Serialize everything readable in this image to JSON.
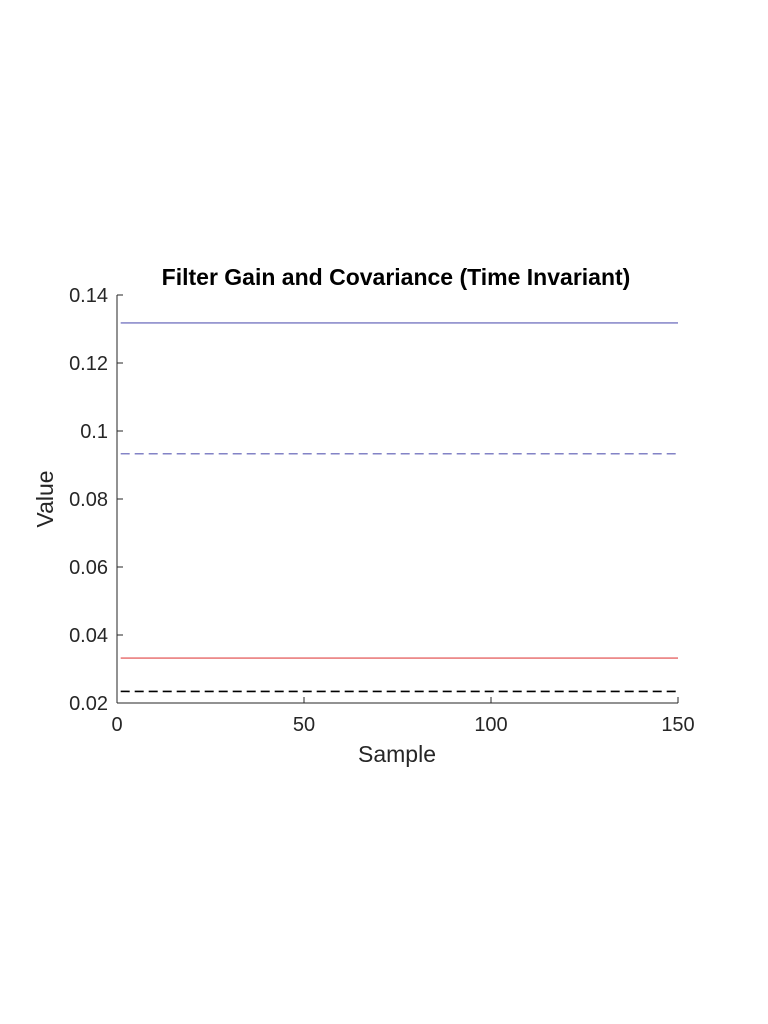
{
  "chart_data": {
    "type": "line",
    "title": "Filter Gain and Covariance (Time Invariant)",
    "xlabel": "Sample",
    "ylabel": "Value",
    "xlim": [
      0,
      150
    ],
    "ylim": [
      0.02,
      0.14
    ],
    "xticks": [
      0,
      50,
      100,
      150
    ],
    "xtick_labels": [
      "0",
      "50",
      "100",
      "150"
    ],
    "yticks": [
      0.02,
      0.04,
      0.06,
      0.08,
      0.1,
      0.12,
      0.14
    ],
    "ytick_labels": [
      "0.02",
      "0.04",
      "0.06",
      "0.08",
      "0.1",
      "0.12",
      "0.14"
    ],
    "grid": false,
    "legend": "none",
    "series": [
      {
        "x": [
          1,
          150
        ],
        "y": [
          0.1318,
          0.1318
        ],
        "color": "#5a5ab4",
        "style": "solid"
      },
      {
        "x": [
          1,
          150
        ],
        "y": [
          0.0933,
          0.0933
        ],
        "color": "#5a5ab4",
        "style": "dashed"
      },
      {
        "x": [
          1,
          150
        ],
        "y": [
          0.0332,
          0.0332
        ],
        "color": "#e04545",
        "style": "solid"
      },
      {
        "x": [
          1,
          150
        ],
        "y": [
          0.0234,
          0.0234
        ],
        "color": "#000000",
        "style": "dashed"
      }
    ]
  }
}
